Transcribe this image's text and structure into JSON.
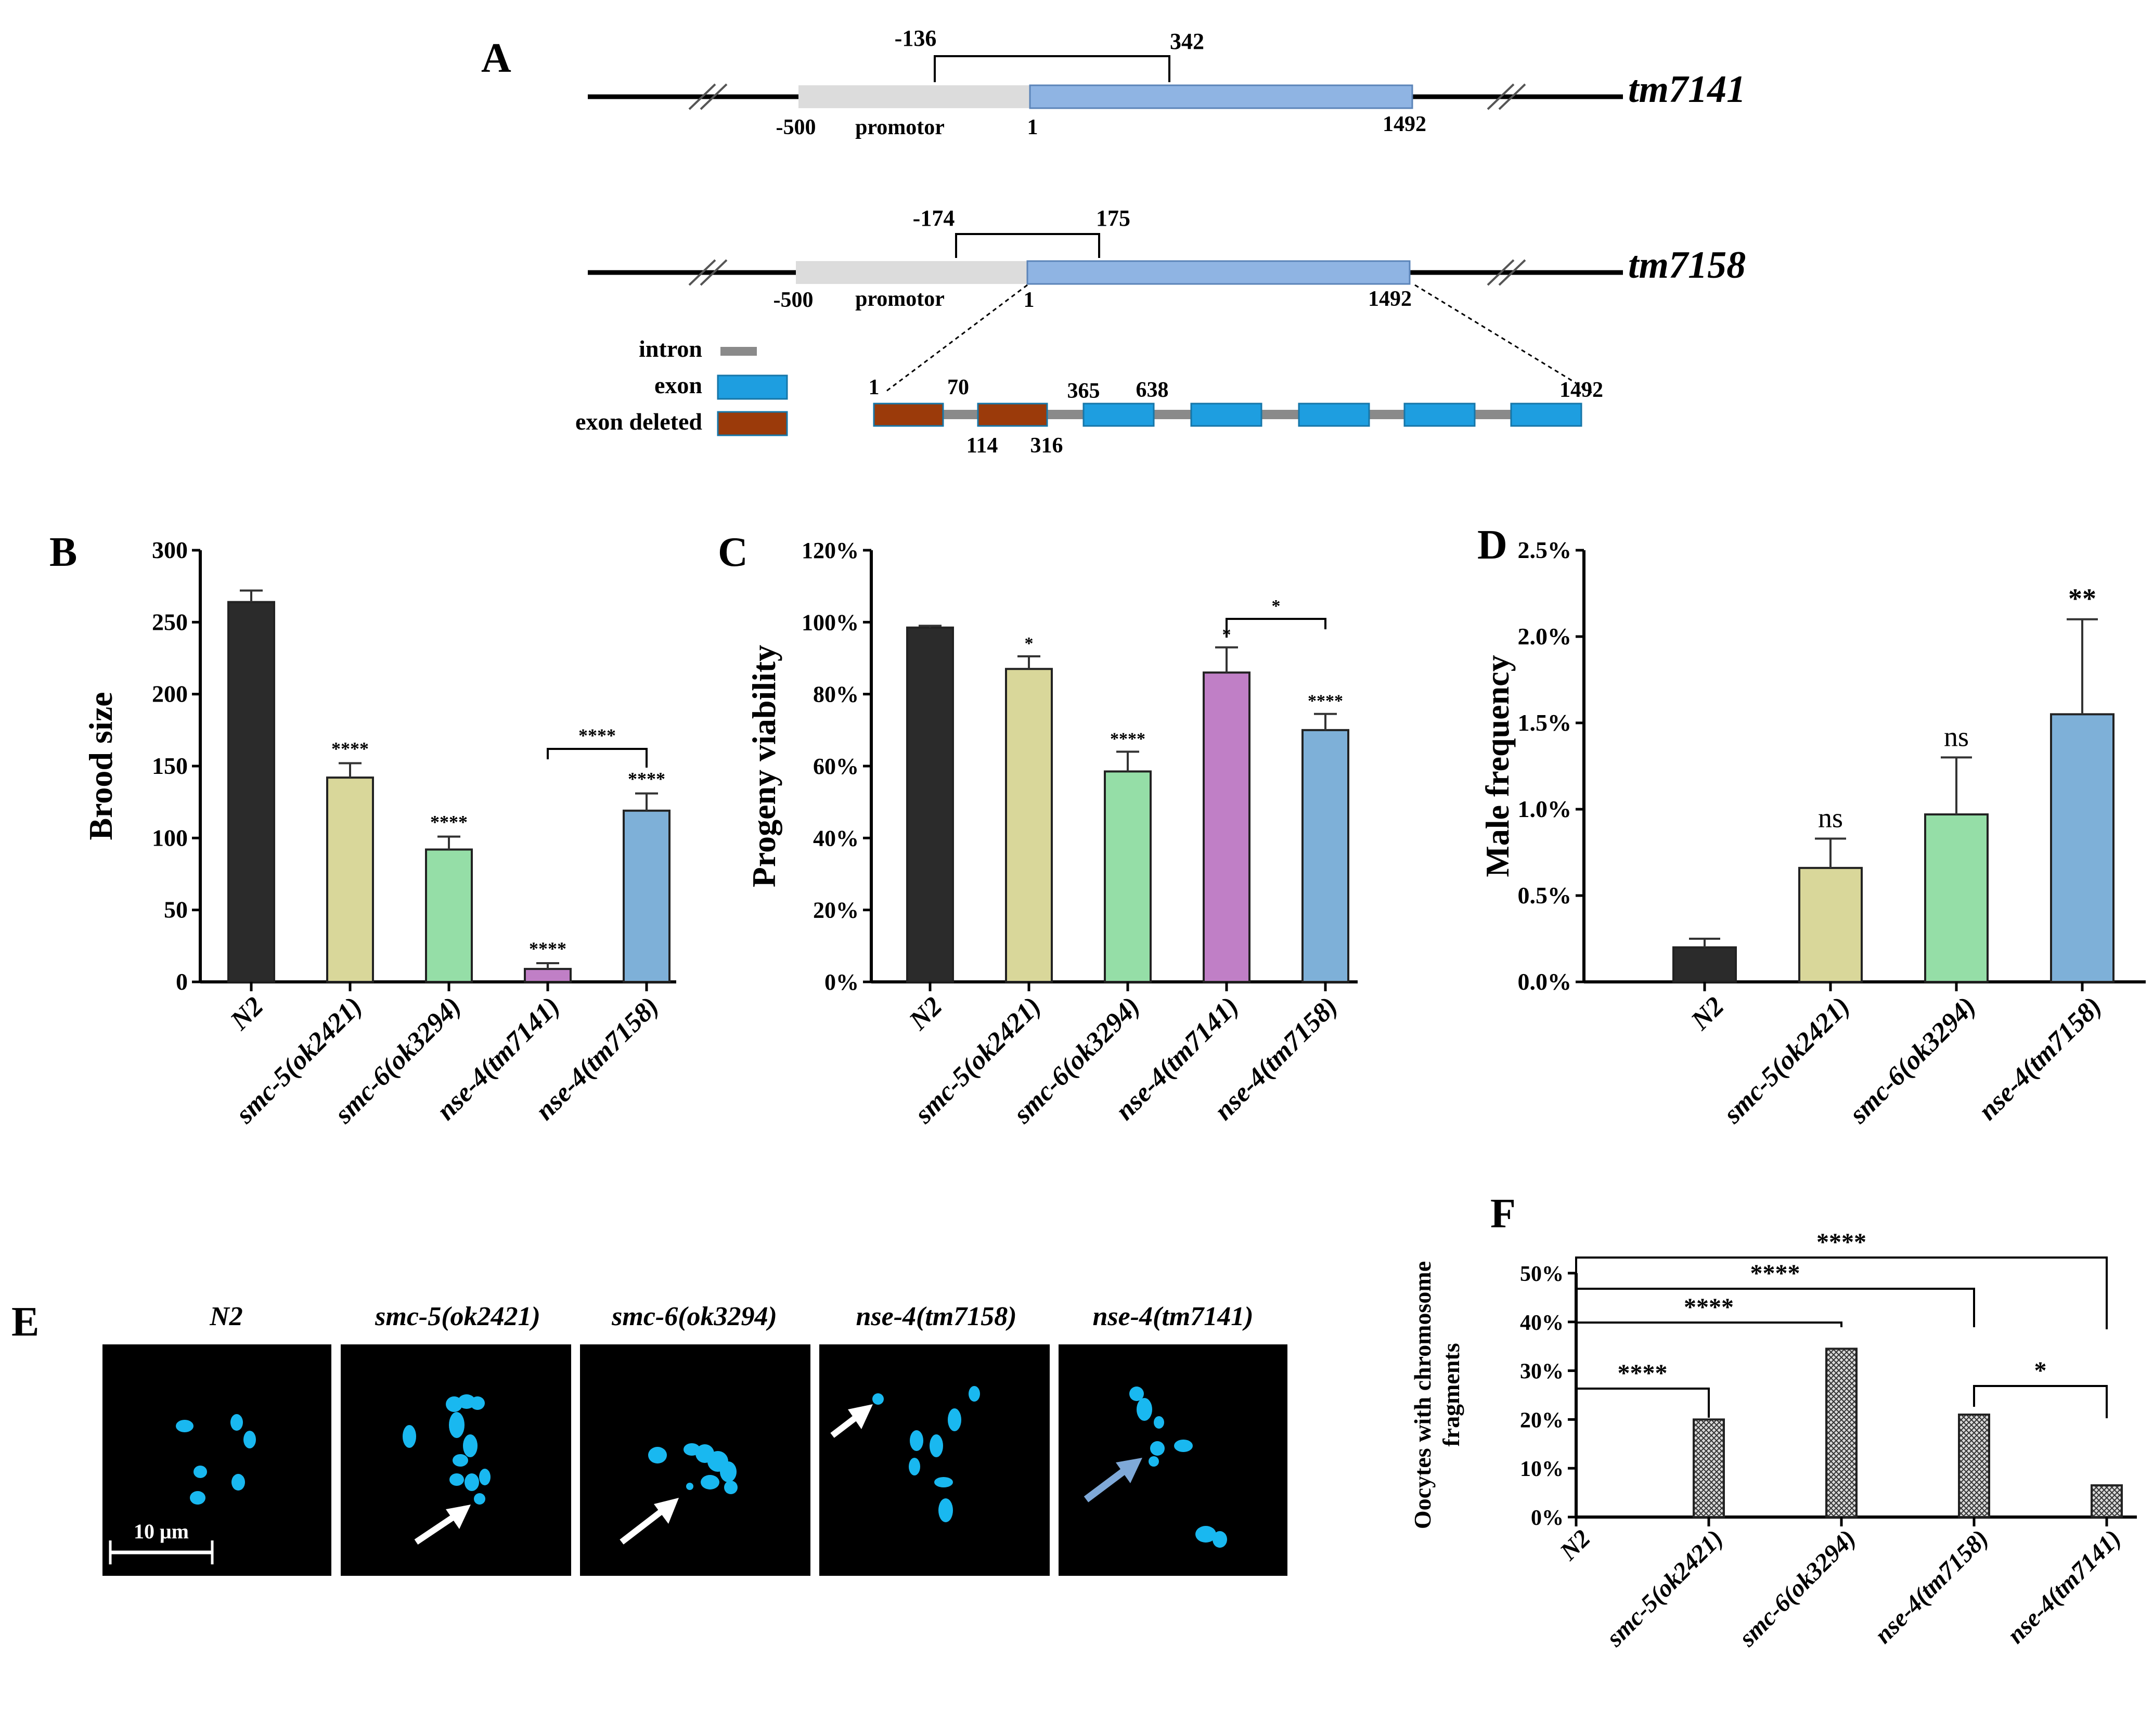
{
  "colors": {
    "black": "#000000",
    "n2": "#2b2b2b",
    "smc5": "#d9d79a",
    "smc6": "#95dea7",
    "tm7141": "#c07fc6",
    "tm7158": "#7eb0d8",
    "promoter": "#dcdcdc",
    "exon_blue_A": "#8fb4e3",
    "exon": "#1e9ee0",
    "exon_deleted": "#9b3a0a",
    "intron": "#8a8a8a",
    "dapi": "#19b8f0",
    "blue_arrow": "#7fa9d8"
  },
  "panelA": {
    "panel_letter": "A",
    "gene1": {
      "name": "tm7141",
      "del_start": "-136",
      "del_end": "342",
      "left": "-500",
      "promoter": "promotor",
      "start": "1",
      "end": "1492"
    },
    "gene2": {
      "name": "tm7158",
      "del_start": "-174",
      "del_end": "175",
      "left": "-500",
      "promoter": "promotor",
      "start": "1",
      "end": "1492"
    },
    "legend": {
      "intron": "intron",
      "exon": "exon",
      "exon_deleted": "exon deleted"
    },
    "exon_map": {
      "n1": "1",
      "n70": "70",
      "n114": "114",
      "n316": "316",
      "n365": "365",
      "n638": "638",
      "n1492": "1492"
    }
  },
  "chart_data": [
    {
      "panel": "B",
      "type": "bar",
      "ylabel": "Brood size",
      "ylim": [
        0,
        300
      ],
      "yticks": [
        0,
        50,
        100,
        150,
        200,
        250,
        300
      ],
      "categories": [
        "N2",
        "smc-5(ok2421)",
        "smc-6(ok3294)",
        "nse-4(tm7141)",
        "nse-4(tm7158)"
      ],
      "values": [
        264,
        142,
        92,
        9,
        119
      ],
      "errors": [
        8,
        10,
        9,
        4,
        12
      ],
      "significance": [
        "",
        "****",
        "****",
        "****",
        "****"
      ],
      "brackets": [
        {
          "from": 3,
          "to": 4,
          "label": "****"
        }
      ]
    },
    {
      "panel": "C",
      "type": "bar",
      "ylabel": "Progeny viability",
      "ylim": [
        0,
        120
      ],
      "yticks": [
        0,
        20,
        40,
        60,
        80,
        100,
        120
      ],
      "tick_labels": [
        "0%",
        "20%",
        "40%",
        "60%",
        "80%",
        "100%",
        "120%"
      ],
      "categories": [
        "N2",
        "smc-5(ok2421)",
        "smc-6(ok3294)",
        "nse-4(tm7141)",
        "nse-4(tm7158)"
      ],
      "values": [
        98.5,
        87,
        58.5,
        86,
        70
      ],
      "errors": [
        0.5,
        3.5,
        5.5,
        7,
        4.5
      ],
      "significance": [
        "",
        "*",
        "****",
        "*",
        "****"
      ],
      "brackets": [
        {
          "from": 3,
          "to": 4,
          "label": "*"
        }
      ]
    },
    {
      "panel": "D",
      "type": "bar",
      "ylabel": "Male frequency",
      "ylim": [
        0,
        2.5
      ],
      "yticks": [
        0,
        0.5,
        1.0,
        1.5,
        2.0,
        2.5
      ],
      "tick_labels": [
        "0.0%",
        "0.5%",
        "1.0%",
        "1.5%",
        "2.0%",
        "2.5%"
      ],
      "categories": [
        "N2",
        "smc-5(ok2421)",
        "smc-6(ok3294)",
        "nse-4(tm7158)"
      ],
      "values": [
        0.2,
        0.66,
        0.97,
        1.55
      ],
      "errors": [
        0.05,
        0.17,
        0.33,
        0.55
      ],
      "significance": [
        "",
        "ns",
        "ns",
        "**"
      ],
      "brackets": []
    },
    {
      "panel": "F",
      "type": "bar",
      "ylabel": "Oocytes with chromosome fragments",
      "ylim": [
        0,
        50
      ],
      "yticks": [
        0,
        10,
        20,
        30,
        40,
        50
      ],
      "tick_labels": [
        "0%",
        "10%",
        "20%",
        "30%",
        "40%",
        "50%"
      ],
      "categories": [
        "N2",
        "smc-5(ok2421)",
        "smc-6(ok3294)",
        "nse-4(tm7158)",
        "nse-4(tm7141)"
      ],
      "values": [
        0,
        20,
        34.5,
        21,
        6.5
      ],
      "errors": [
        0,
        0,
        0,
        0,
        0
      ],
      "significance": [
        "",
        "",
        "",
        "",
        ""
      ],
      "brackets": [
        {
          "from": 0,
          "to": 1,
          "label": "****"
        },
        {
          "from": 0,
          "to": 2,
          "label": "****"
        },
        {
          "from": 0,
          "to": 3,
          "label": "****"
        },
        {
          "from": 0,
          "to": 4,
          "label": "****"
        },
        {
          "from": 3,
          "to": 4,
          "label": "*"
        }
      ]
    }
  ],
  "panelE": {
    "panel_letter": "E",
    "titles": [
      "N2",
      "smc-5(ok2421)",
      "smc-6(ok3294)",
      "nse-4(tm7158)",
      "nse-4(tm7141)"
    ],
    "scale_label": "10 μm"
  },
  "letters": {
    "B": "B",
    "C": "C",
    "D": "D",
    "F": "F"
  }
}
